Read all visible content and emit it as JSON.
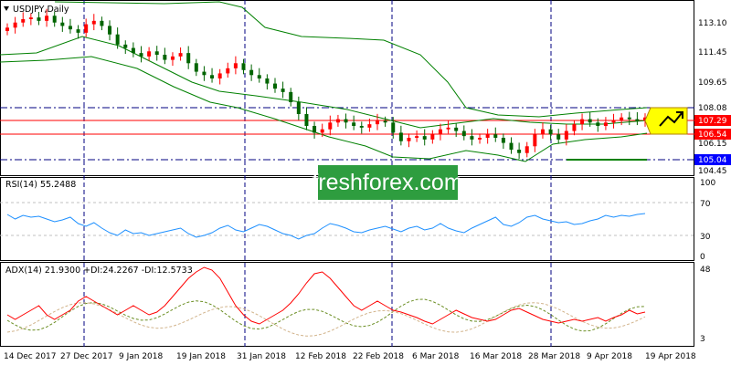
{
  "colors": {
    "up": "#ff0000",
    "down": "#006400",
    "bands": "#008000",
    "rsi": "#1e90ff",
    "adx": "#ff0000",
    "grid": "#c0c0c0",
    "vline": "#000080",
    "tag_red": "#ff0000",
    "tag_black": "#000000",
    "tag_blue": "#0000ff",
    "highlight": "#ffff00",
    "watermark_bg": "#2e9d3f",
    "watermark_text": "#ffffff"
  },
  "main": {
    "title": "USDJPY,Daily",
    "collapse_icon": "triangle-down-icon",
    "arrow_icon": "up-arrow-icon",
    "price_labels": [
      "113.10",
      "111.45",
      "109.65",
      "108.08",
      "107.29",
      "106.54",
      "106.15",
      "105.04",
      "104.45"
    ]
  },
  "rsi": {
    "title": "RSI(14) 55.2488",
    "levels": [
      "100",
      "70",
      "30",
      "0"
    ]
  },
  "adx": {
    "title": "ADX(14) 21.9300 +DI:24.2267 -DI:12.5733",
    "levels": [
      "48",
      "3"
    ]
  },
  "xaxis": {
    "dates": [
      "14 Dec 2017",
      "27 Dec 2017",
      "9 Jan 2018",
      "19 Jan 2018",
      "31 Jan 2018",
      "12 Feb 2018",
      "22 Feb 2018",
      "6 Mar 2018",
      "16 Mar 2018",
      "28 Mar 2018",
      "9 Apr 2018",
      "19 Apr 2018"
    ]
  },
  "watermark": {
    "text": "freshforex.com"
  },
  "chart_data": {
    "type": "candlestick",
    "symbol": "USDJPY",
    "timeframe": "Daily",
    "y_range": [
      104.0,
      113.8
    ],
    "closes": [
      112.6,
      112.9,
      113.1,
      113.2,
      113.0,
      113.3,
      112.9,
      112.7,
      112.5,
      112.3,
      112.8,
      113.0,
      112.7,
      112.2,
      111.6,
      111.4,
      111.1,
      110.9,
      111.2,
      111.0,
      110.7,
      110.9,
      111.1,
      110.5,
      110.0,
      109.8,
      109.6,
      109.9,
      110.2,
      110.5,
      110.1,
      109.8,
      109.6,
      109.3,
      109.0,
      108.8,
      108.2,
      107.5,
      106.8,
      106.4,
      106.6,
      107.0,
      107.2,
      107.0,
      106.8,
      106.7,
      106.9,
      107.1,
      107.0,
      106.4,
      105.9,
      106.1,
      106.2,
      106.0,
      106.3,
      106.6,
      106.7,
      106.5,
      106.2,
      106.0,
      106.1,
      106.3,
      106.1,
      105.8,
      105.4,
      105.2,
      105.6,
      106.3,
      106.6,
      106.3,
      106.0,
      106.5,
      106.9,
      107.2,
      107.0,
      106.8,
      107.0,
      107.1,
      107.3,
      107.2,
      107.1,
      107.3
    ]
  }
}
